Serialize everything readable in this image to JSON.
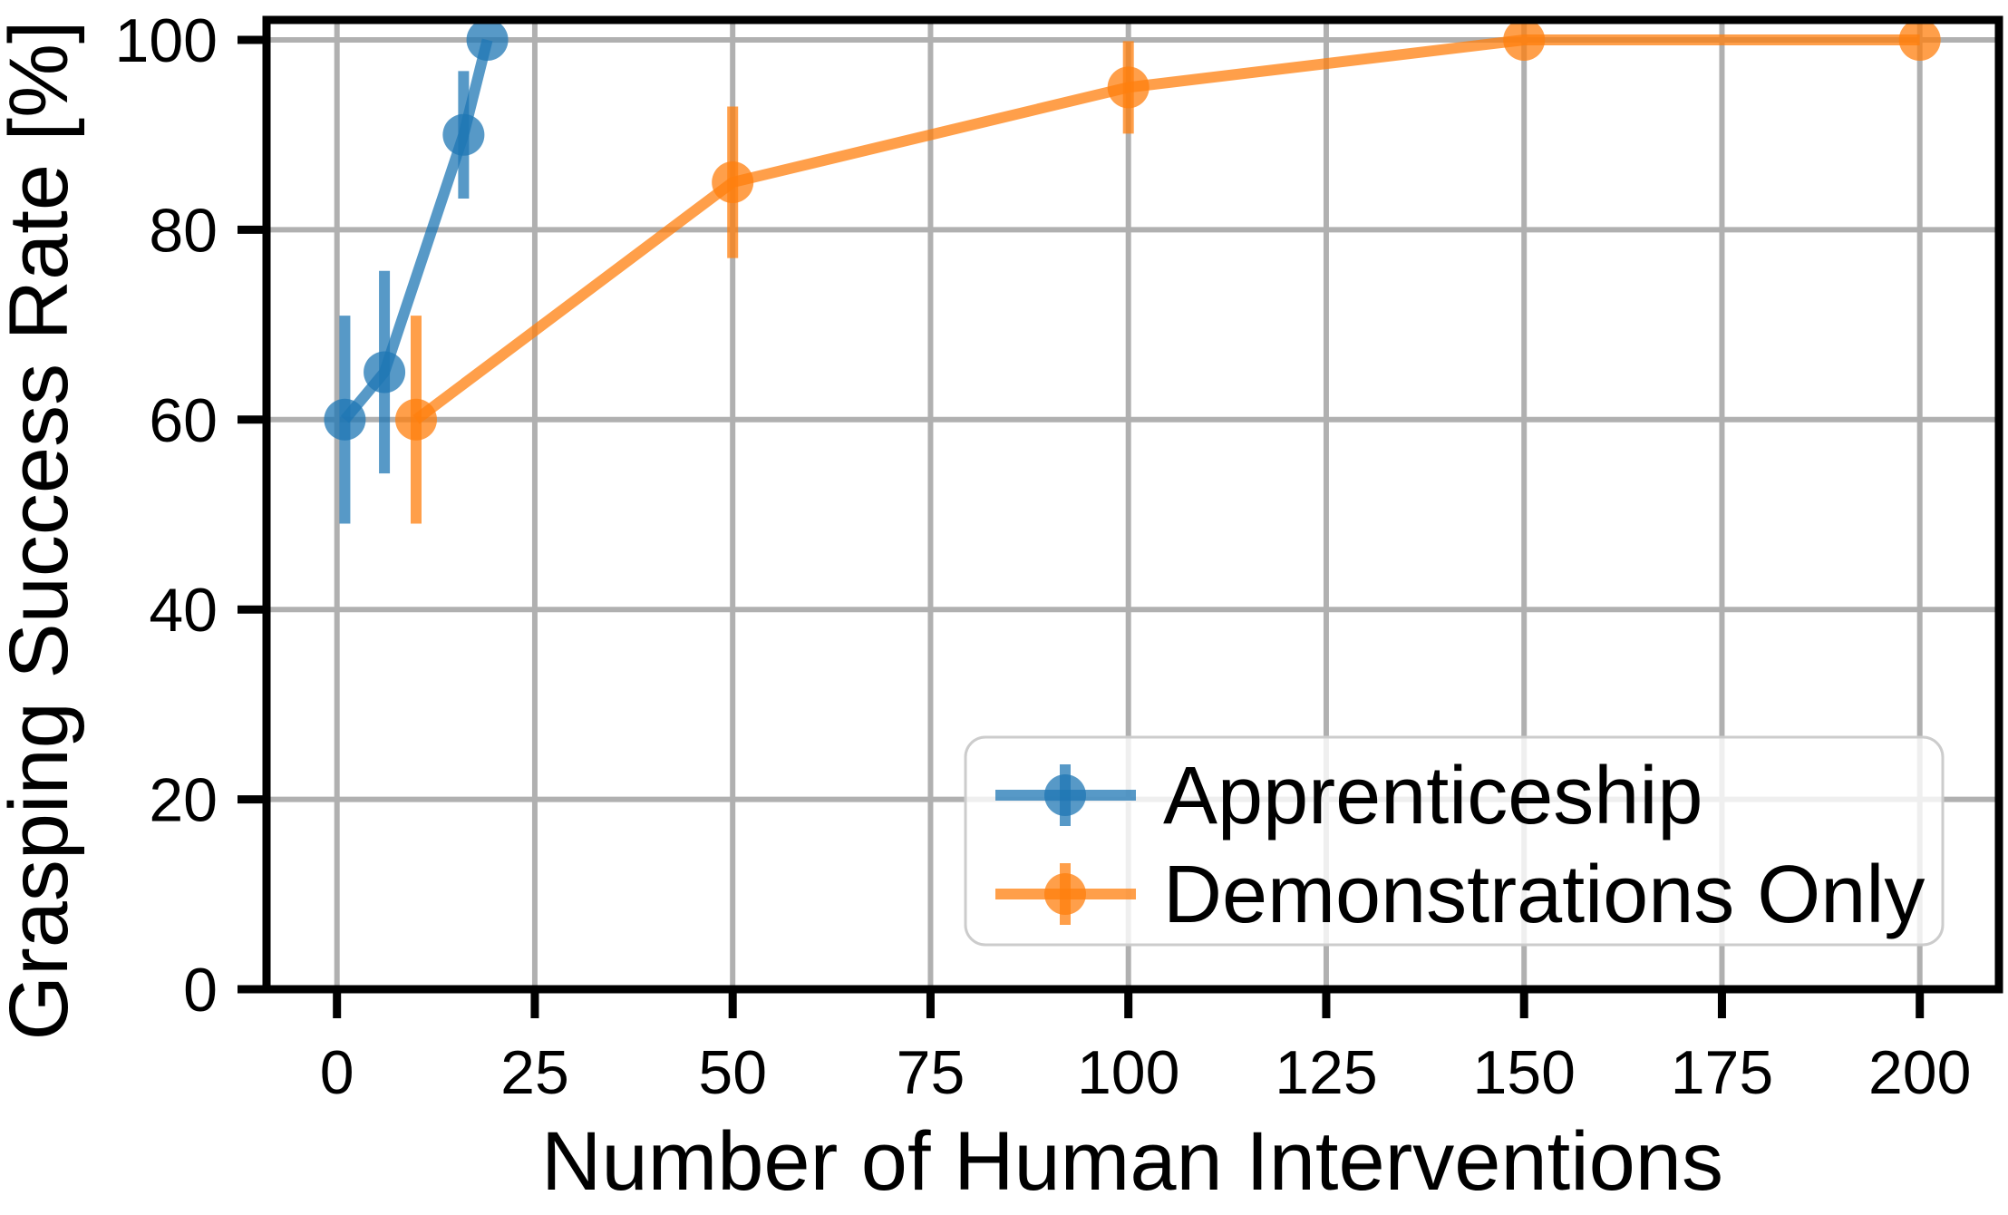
{
  "figure": {
    "background": "#ffffff"
  },
  "chart_data": {
    "type": "line",
    "title": "",
    "xlabel": "Number of Human Interventions",
    "ylabel": "Grasping Success Rate [%]",
    "xlim": [
      -8.9,
      210
    ],
    "ylim": [
      0,
      102.1
    ],
    "xticks": [
      0,
      25,
      50,
      75,
      100,
      125,
      150,
      175,
      200
    ],
    "yticks": [
      0,
      20,
      40,
      60,
      80,
      100
    ],
    "grid": true,
    "grid_color": "#b0b0b0",
    "axis_color": "#000000",
    "legend": {
      "position": "lower right",
      "entries": [
        "Apprenticeship",
        "Demonstrations Only"
      ]
    },
    "series": [
      {
        "name": "Apprenticeship",
        "color": "#1f77b4",
        "alpha": 0.75,
        "marker": "circle",
        "x": [
          1,
          6,
          16,
          19
        ],
        "y": [
          60,
          65,
          90,
          100
        ],
        "yerr": [
          10.95,
          10.67,
          6.71,
          0
        ]
      },
      {
        "name": "Demonstrations Only",
        "color": "#ff7f0e",
        "alpha": 0.75,
        "marker": "circle",
        "x": [
          10,
          50,
          100,
          150,
          200
        ],
        "y": [
          60,
          85,
          95,
          100,
          100
        ],
        "yerr": [
          10.95,
          7.98,
          4.87,
          0,
          0
        ]
      }
    ]
  }
}
